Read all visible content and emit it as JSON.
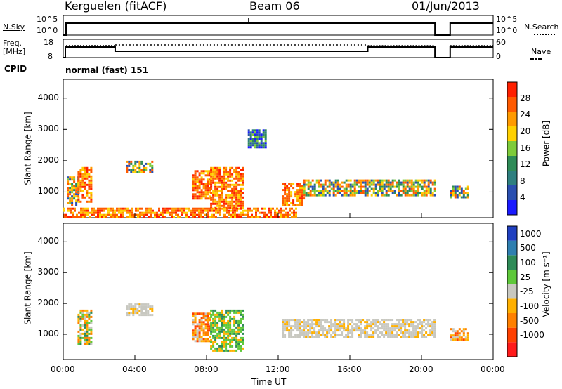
{
  "header": {
    "station": "Kerguelen (fitACF)",
    "beam": "Beam 06",
    "date": "01/Jun/2013"
  },
  "nsky_panel": {
    "left_label": "N.Sky",
    "right_label": "N.Search",
    "ytick_top": "10^5",
    "ytick_bottom": "10^0",
    "ytick_top_right": "10^5",
    "ytick_bottom_right": "10^0"
  },
  "freq_panel": {
    "left_label_line1": "Freq.",
    "left_label_line2": "[MHz]",
    "right_label": "Nave",
    "ytick_top": "18",
    "ytick_bottom": "8",
    "ytick_top_right": "60",
    "ytick_bottom_right": "0"
  },
  "cpid": {
    "label": "CPID",
    "value": "normal (fast) 151"
  },
  "chart_data": [
    {
      "type": "heatmap",
      "name": "power",
      "xlabel": "",
      "ylabel": "Slant Range [km]",
      "x_ticks": [
        "00:00",
        "04:00",
        "08:00",
        "12:00",
        "16:00",
        "20:00",
        "00:00"
      ],
      "x_hours": [
        0,
        4,
        8,
        12,
        16,
        20,
        24
      ],
      "ylim": [
        180,
        4600
      ],
      "y_ticks": [
        1000,
        2000,
        3000,
        4000
      ],
      "colorbar": {
        "label": "Power [dB]",
        "ticks": [
          "4",
          "8",
          "12",
          "16",
          "20",
          "24",
          "28"
        ],
        "colors": [
          "#1a1aff",
          "#2a4fb0",
          "#2e7f7f",
          "#2e8b57",
          "#7ecb3a",
          "#ffd000",
          "#ff9a00",
          "#ff5a00",
          "#ff2000"
        ]
      },
      "data_gap_hours": [
        20.75,
        21.6
      ],
      "regions": [
        {
          "x0": 0.2,
          "x1": 0.8,
          "y0": 600,
          "y1": 1500,
          "level": "medium"
        },
        {
          "x0": 0.8,
          "x1": 1.6,
          "y0": 700,
          "y1": 1800,
          "level": "high"
        },
        {
          "x0": 3.5,
          "x1": 5.0,
          "y0": 1600,
          "y1": 2000,
          "level": "medium"
        },
        {
          "x0": 7.2,
          "x1": 8.2,
          "y0": 800,
          "y1": 1700,
          "level": "high"
        },
        {
          "x0": 8.2,
          "x1": 10.0,
          "y0": 500,
          "y1": 1800,
          "level": "high"
        },
        {
          "x0": 12.2,
          "x1": 13.4,
          "y0": 600,
          "y1": 1300,
          "level": "high"
        },
        {
          "x0": 13.4,
          "x1": 20.7,
          "y0": 900,
          "y1": 1400,
          "level": "medium"
        },
        {
          "x0": 21.6,
          "x1": 22.6,
          "y0": 800,
          "y1": 1200,
          "level": "medium"
        },
        {
          "x0": 10.3,
          "x1": 11.3,
          "y0": 2400,
          "y1": 3000,
          "level": "low"
        },
        {
          "x0": 0.0,
          "x1": 13.0,
          "y0": 200,
          "y1": 500,
          "level": "high"
        }
      ]
    },
    {
      "type": "heatmap",
      "name": "velocity",
      "xlabel": "Time UT",
      "ylabel": "Slant Range [km]",
      "x_ticks": [
        "00:00",
        "04:00",
        "08:00",
        "12:00",
        "16:00",
        "20:00",
        "00:00"
      ],
      "x_hours": [
        0,
        4,
        8,
        12,
        16,
        20,
        24
      ],
      "ylim": [
        180,
        4600
      ],
      "y_ticks": [
        1000,
        2000,
        3000,
        4000
      ],
      "colorbar": {
        "label": "Velocity [m s⁻¹]",
        "ticks": [
          "1000",
          "500",
          "100",
          "25",
          "-25",
          "-100",
          "-500",
          "-1000"
        ],
        "colors": [
          "#2040c0",
          "#2f7fb0",
          "#2e8b57",
          "#5ec83a",
          "#c8c8c0",
          "#ffb000",
          "#ff8000",
          "#ff4000",
          "#ff1a1a"
        ]
      },
      "data_gap_hours": [
        20.75,
        21.6
      ],
      "regions": [
        {
          "x0": 0.8,
          "x1": 1.6,
          "y0": 700,
          "y1": 1800,
          "level": "mixed-green"
        },
        {
          "x0": 3.5,
          "x1": 5.0,
          "y0": 1600,
          "y1": 2000,
          "level": "grey"
        },
        {
          "x0": 7.2,
          "x1": 8.2,
          "y0": 800,
          "y1": 1700,
          "level": "orange"
        },
        {
          "x0": 8.2,
          "x1": 10.0,
          "y0": 500,
          "y1": 1800,
          "level": "green"
        },
        {
          "x0": 12.2,
          "x1": 20.7,
          "y0": 900,
          "y1": 1500,
          "level": "grey"
        },
        {
          "x0": 21.6,
          "x1": 22.6,
          "y0": 800,
          "y1": 1200,
          "level": "orange"
        }
      ]
    }
  ]
}
